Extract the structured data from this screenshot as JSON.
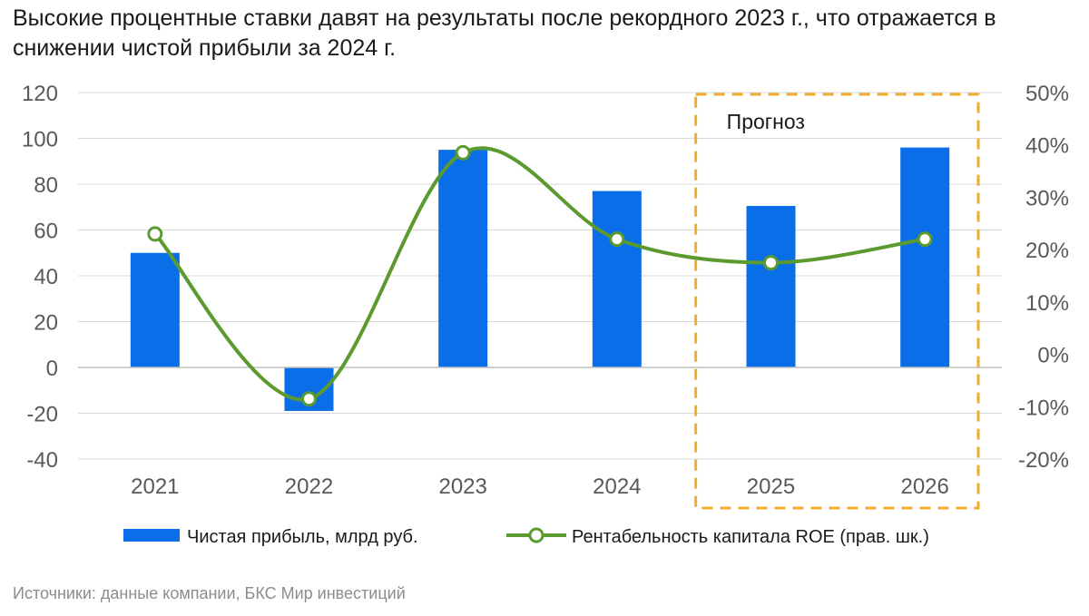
{
  "chart_data": {
    "type": "bar",
    "title": "Высокие процентные ставки давят на результаты после рекордного 2023 г., что отражается в снижении чистой прибыли за 2024 г.",
    "categories": [
      "2021",
      "2022",
      "2023",
      "2024",
      "2025",
      "2026"
    ],
    "series": [
      {
        "name": "Чистая прибыль, млрд руб.",
        "type": "bar",
        "axis": "left",
        "values": [
          50,
          -19,
          95,
          77,
          70.5,
          96
        ]
      },
      {
        "name": "Рентабельность капитала ROE (прав. шк.)",
        "type": "line",
        "axis": "right",
        "smooth": true,
        "values": [
          0.23,
          -0.085,
          0.385,
          0.22,
          0.175,
          0.22
        ]
      }
    ],
    "y_left": {
      "min": -40,
      "max": 120,
      "ticks": [
        "120",
        "100",
        "80",
        "60",
        "40",
        "20",
        "0",
        "-20",
        "-40"
      ]
    },
    "y_right": {
      "min": -0.2,
      "max": 0.5,
      "ticks": [
        "50%",
        "40%",
        "30%",
        "20%",
        "10%",
        "0%",
        "-10%",
        "-20%"
      ]
    },
    "forecast": {
      "label": "Прогноз",
      "categories": [
        "2025",
        "2026"
      ]
    },
    "grid": true,
    "legend_position": "bottom",
    "colors": {
      "bar": "#0a6ee8",
      "line": "#5b9a2f",
      "forecast_border": "#f0ac2a",
      "grid": "#d9d9d9"
    }
  },
  "source": "Источники: данные компании, БКС Мир инвестиций"
}
